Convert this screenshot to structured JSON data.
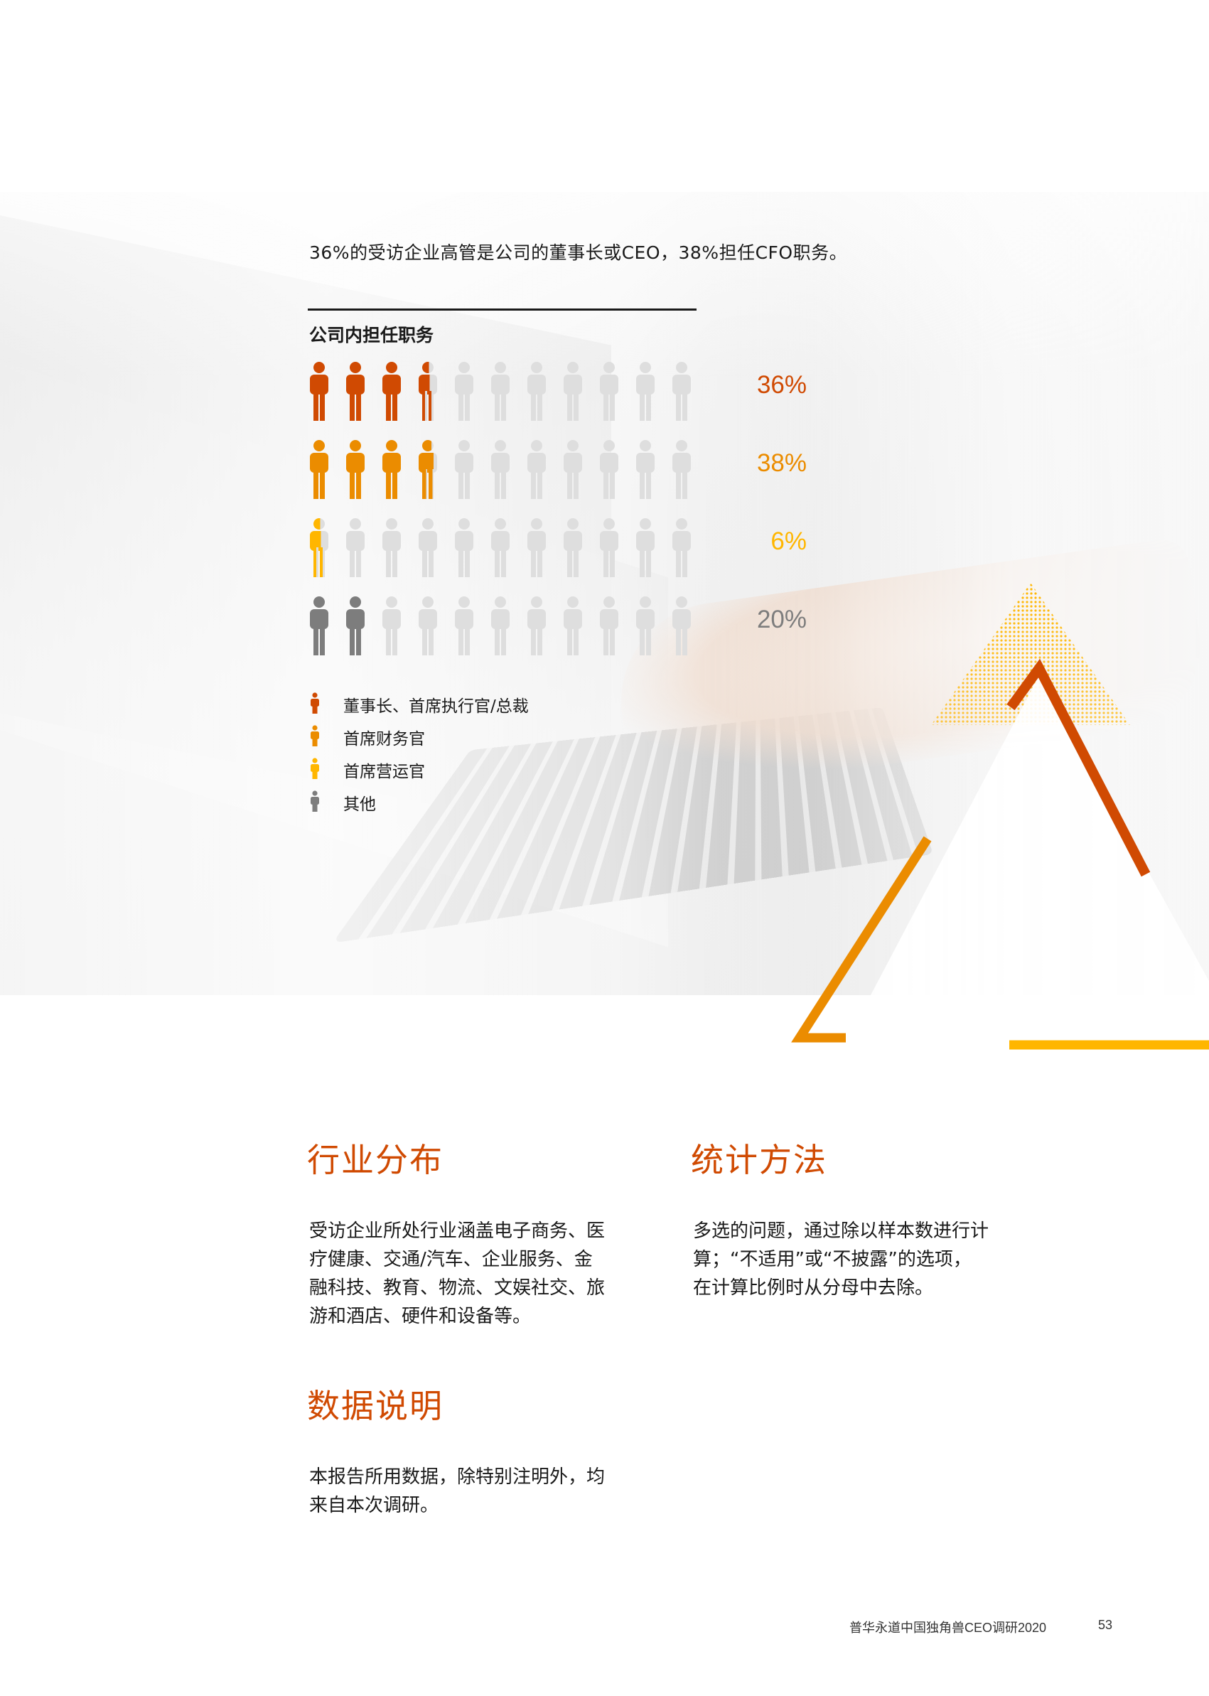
{
  "intro": "36%的受访企业高管是公司的董事长或CEO，38%担任CFO职务。",
  "chart_data": {
    "type": "pictogram",
    "title": "公司内担任职务",
    "icons_per_row": 10,
    "series": [
      {
        "name": "董事长、首席执行官/总裁",
        "value": 36,
        "label": "36%",
        "color": "#d04a02"
      },
      {
        "name": "首席财务官",
        "value": 38,
        "label": "38%",
        "color": "#eb8c00"
      },
      {
        "name": "首席营运官",
        "value": 6,
        "label": "6%",
        "color": "#ffb600"
      },
      {
        "name": "其他",
        "value": 20,
        "label": "20%",
        "color": "#7d7d7d"
      }
    ],
    "empty_color": "#dedede"
  },
  "sections": {
    "industry": {
      "title": "行业分布",
      "lines": [
        "受访企业所处行业涵盖电子商务、医",
        "疗健康、交通/汽车、企业服务、金",
        "融科技、教育、物流、文娱社交、旅",
        "游和酒店、硬件和设备等。"
      ]
    },
    "method": {
      "title": "统计方法",
      "lines": [
        "多选的问题，通过除以样本数进行计",
        "算；“不适用”或“不披露”的选项，",
        "在计算比例时从分母中去除。"
      ]
    },
    "data_note": {
      "title": "数据说明",
      "lines": [
        "本报告所用数据，除特别注明外，均",
        "来自本次调研。"
      ]
    }
  },
  "footer": {
    "report": "普华永道中国独角兽CEO调研2020",
    "page": "53"
  },
  "colors": {
    "accent": "#d04a02",
    "orange": "#eb8c00",
    "yellow": "#ffb600",
    "grey": "#7d7d7d"
  }
}
